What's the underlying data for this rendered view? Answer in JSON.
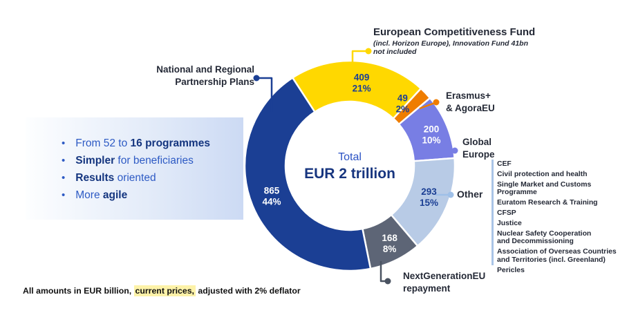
{
  "chart_data": {
    "type": "donut",
    "total": {
      "label": "Total",
      "value": "EUR 2 trillion"
    },
    "start_angle_deg": -33,
    "unit": "EUR billion",
    "segments": [
      {
        "label": "European Competitiveness Fund",
        "value": 409,
        "pct": 21,
        "color": "#ffd800",
        "text_color": "#1b3f94"
      },
      {
        "label": "Erasmus+ & AgoraEU",
        "value": 49,
        "pct": 2,
        "color": "#ef7d00",
        "text_color": "#1b3f94"
      },
      {
        "label": "Global Europe",
        "value": 200,
        "pct": 10,
        "color": "#787ee4",
        "text_color": "#ffffff"
      },
      {
        "label": "Other",
        "value": 293,
        "pct": 15,
        "color": "#b8cbe6",
        "text_color": "#1b3f94"
      },
      {
        "label": "NextGenerationEU repayment",
        "value": 168,
        "pct": 8,
        "color": "#5d6576",
        "text_color": "#ffffff"
      },
      {
        "label": "National and Regional Partnership Plans",
        "value": 865,
        "pct": 44,
        "color": "#1b3f94",
        "text_color": "#ffffff"
      }
    ]
  },
  "callouts": {
    "ecf": {
      "title": "European Competitiveness Fund",
      "subtitle": "(incl. Horizon Europe), Innovation Fund 41bn not included"
    },
    "national": {
      "line1": "National and Regional",
      "line2": "Partnership Plans"
    },
    "erasmus": {
      "line1": "Erasmus+",
      "line2": "& AgoraEU"
    },
    "global_europe": {
      "line1": "Global",
      "line2": "Europe"
    },
    "other": {
      "label": "Other"
    },
    "ngeu": {
      "line1": "NextGenerationEU",
      "line2": "repayment"
    }
  },
  "highlights": {
    "items": [
      {
        "parts": [
          {
            "text": "From 52 to ",
            "bold": false
          },
          {
            "text": "16 programmes",
            "bold": true
          }
        ]
      },
      {
        "parts": [
          {
            "text": "Simpler",
            "bold": true
          },
          {
            "text": " for beneficiaries",
            "bold": false
          }
        ]
      },
      {
        "parts": [
          {
            "text": "Results",
            "bold": true
          },
          {
            "text": " oriented",
            "bold": false
          }
        ]
      },
      {
        "parts": [
          {
            "text": "More ",
            "bold": false
          },
          {
            "text": "agile",
            "bold": true
          }
        ]
      }
    ]
  },
  "other_programmes": [
    {
      "lines": [
        "CEF"
      ]
    },
    {
      "lines": [
        "Civil protection and health"
      ]
    },
    {
      "lines": [
        "Single Market and Customs",
        "Programme"
      ]
    },
    {
      "lines": [
        "Euratom Research & Training"
      ]
    },
    {
      "lines": [
        "CFSP"
      ]
    },
    {
      "lines": [
        "Justice"
      ]
    },
    {
      "lines": [
        "Nuclear Safety Cooperation",
        "and Decommissioning"
      ]
    },
    {
      "lines": [
        "Association of Overseas Countries",
        "and Territories (incl. Greenland)"
      ]
    },
    {
      "lines": [
        "Pericles"
      ]
    }
  ],
  "footnote": {
    "prefix": "All amounts in EUR billion, ",
    "highlight": "current prices,",
    "suffix": " adjusted with 2% deflator"
  },
  "colors": {
    "accent_blue": "#1b3f94",
    "bullet_blue": "#2d5ac4",
    "text_dark": "#242936",
    "highlight_yellow": "#fdf2a8",
    "connector_other": "#9fc0e8",
    "connector_ngeu": "#4a5361"
  }
}
